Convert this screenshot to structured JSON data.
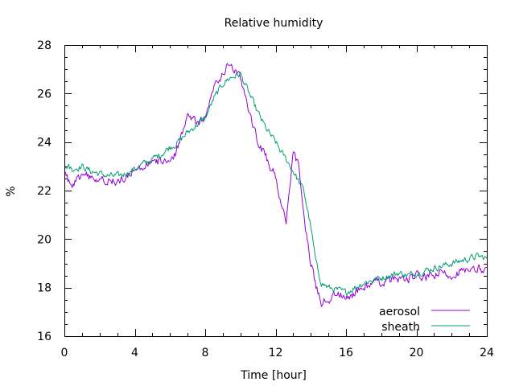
{
  "chart_data": {
    "type": "line",
    "title": "Relative humidity",
    "xlabel": "Time [hour]",
    "ylabel": "%",
    "xlim": [
      0,
      24
    ],
    "ylim": [
      16,
      28
    ],
    "xticks": [
      "0",
      "4",
      "8",
      "12",
      "16",
      "20",
      "24"
    ],
    "yticks": [
      "16",
      "18",
      "20",
      "22",
      "24",
      "26",
      "28"
    ],
    "xtick_values": [
      0,
      4,
      8,
      12,
      16,
      20,
      24
    ],
    "ytick_values": [
      16,
      18,
      20,
      22,
      24,
      26,
      28
    ],
    "minor_xtick_step": 1,
    "minor_ytick_step": 0.5,
    "grid": false,
    "legend_position": "bottom-right",
    "series": [
      {
        "name": "aerosol",
        "color": "#9400d3",
        "x": [
          0,
          0.5,
          1,
          1.5,
          2,
          2.5,
          3,
          3.5,
          4,
          4.5,
          5,
          5.5,
          6,
          6.3,
          6.6,
          7,
          7.5,
          8,
          8.5,
          9,
          9.3,
          9.6,
          10,
          10.5,
          11,
          11.5,
          12,
          12.3,
          12.6,
          13,
          13.3,
          13.6,
          14,
          14.3,
          14.6,
          15,
          15.5,
          16,
          16.5,
          17,
          17.5,
          18,
          18.5,
          19,
          19.5,
          20,
          20.5,
          21,
          21.5,
          22,
          22.5,
          23,
          23.5,
          24
        ],
        "y": [
          22.6,
          22.2,
          22.7,
          22.5,
          22.4,
          22.5,
          22.3,
          22.5,
          22.8,
          23.0,
          23.1,
          23.2,
          23.4,
          23.5,
          24.2,
          25.2,
          24.8,
          25.0,
          26.2,
          26.8,
          27.3,
          27.0,
          26.6,
          25.2,
          24.0,
          23.3,
          22.6,
          21.5,
          20.6,
          23.5,
          23.0,
          21.0,
          19.0,
          18.0,
          17.4,
          17.5,
          17.8,
          17.5,
          17.8,
          18.0,
          18.2,
          18.2,
          18.3,
          18.4,
          18.3,
          18.5,
          18.4,
          18.5,
          18.6,
          18.5,
          18.7,
          18.6,
          18.8,
          18.7
        ],
        "noise": 0.28
      },
      {
        "name": "sheath",
        "color": "#009e73",
        "x": [
          0,
          0.5,
          1,
          1.5,
          2,
          2.5,
          3,
          3.5,
          4,
          4.5,
          5,
          5.5,
          6,
          6.3,
          6.6,
          7,
          7.5,
          8,
          8.5,
          9,
          9.3,
          9.6,
          10,
          10.5,
          11,
          11.5,
          12,
          12.3,
          12.6,
          13,
          13.3,
          13.6,
          14,
          14.3,
          14.6,
          15,
          15.5,
          16,
          16.5,
          17,
          17.5,
          18,
          18.5,
          19,
          19.5,
          20,
          20.5,
          21,
          21.5,
          22,
          22.5,
          23,
          23.5,
          24
        ],
        "y": [
          23.0,
          22.9,
          23.0,
          22.8,
          22.7,
          22.6,
          22.6,
          22.7,
          22.9,
          23.1,
          23.3,
          23.5,
          23.8,
          23.9,
          24.1,
          24.4,
          24.7,
          25.0,
          25.8,
          26.4,
          26.6,
          26.7,
          26.8,
          26.0,
          25.2,
          24.5,
          24.0,
          23.6,
          23.3,
          22.8,
          22.4,
          22.0,
          20.5,
          19.0,
          18.2,
          18.0,
          17.9,
          17.8,
          18.0,
          18.2,
          18.3,
          18.4,
          18.5,
          18.6,
          18.5,
          18.6,
          18.7,
          18.8,
          18.9,
          19.0,
          19.1,
          19.2,
          19.3,
          19.2
        ],
        "noise": 0.22
      }
    ]
  }
}
